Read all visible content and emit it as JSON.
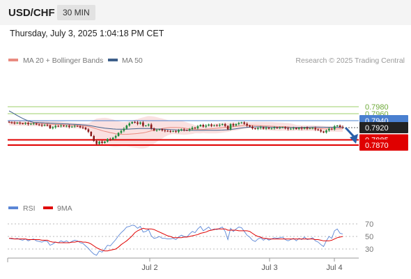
{
  "header": {
    "symbol": "USD/CHF",
    "timeframe": "30 MIN",
    "timestamp": "Thursday, July 3, 2025 1:04:18 PM CET"
  },
  "legend": {
    "ma20_label": "MA 20 + Bollinger Bands",
    "ma50_label": "MA 50",
    "credit": "Research © 2025 Trading Central",
    "rsi_label": "RSI",
    "ma9_label": "9MA"
  },
  "colors": {
    "up_candle": "#1e8a3c",
    "down_candle": "#8a1a1a",
    "ma20": "#e98b80",
    "band_fill": "#f9dcdc",
    "ma50": "#3e5f8a",
    "resistance": "#4a80d0",
    "target": "#e00000",
    "green_level": "#9ccf6a",
    "rsi": "#5b86d6",
    "rsi_ma": "#e00000",
    "forecast_arrow": "#2a5fa8",
    "current_price_bg": "#222222"
  },
  "chart_data": [
    {
      "type": "candlestick",
      "title": "USD/CHF 30 MIN",
      "y_tick_labels": [
        "0.7980",
        "0.7960",
        "0.7940",
        "0.7920",
        "0.7885",
        "0.7870"
      ],
      "ylim": [
        0.7865,
        0.799
      ],
      "x_tick_labels": [
        "Jul 2",
        "Jul 3",
        "Jul 4"
      ],
      "current_price": 0.792,
      "levels": [
        {
          "value": 0.798,
          "label": "0.7980",
          "kind": "green"
        },
        {
          "value": 0.796,
          "label": "0.7960",
          "kind": "green"
        },
        {
          "value": 0.794,
          "label": "0.7940",
          "kind": "resistance"
        },
        {
          "value": 0.7885,
          "label": "0.7885",
          "kind": "target"
        },
        {
          "value": 0.787,
          "label": "0.7870",
          "kind": "target"
        }
      ],
      "forecast": {
        "from": 0.792,
        "to": 0.787
      },
      "series": [
        {
          "name": "MA 20 + Bollinger Bands",
          "type": "line"
        },
        {
          "name": "MA 50",
          "type": "line"
        }
      ],
      "close": [
        0.7935,
        0.7934,
        0.7933,
        0.7934,
        0.7932,
        0.7931,
        0.7933,
        0.793,
        0.7931,
        0.7932,
        0.7929,
        0.7928,
        0.7926,
        0.7928,
        0.7927,
        0.7918,
        0.7921,
        0.7925,
        0.7924,
        0.7926,
        0.7924,
        0.7925,
        0.7922,
        0.7923,
        0.7925,
        0.7924,
        0.7921,
        0.792,
        0.7915,
        0.7908,
        0.7896,
        0.7882,
        0.7873,
        0.788,
        0.7876,
        0.788,
        0.7887,
        0.7886,
        0.7891,
        0.7896,
        0.7905,
        0.7911,
        0.7917,
        0.7926,
        0.7932,
        0.7936,
        0.7935,
        0.7931,
        0.7935,
        0.7925,
        0.7926,
        0.7929,
        0.7918,
        0.7912,
        0.7913,
        0.7915,
        0.7912,
        0.7911,
        0.791,
        0.7909,
        0.791,
        0.7908,
        0.7912,
        0.7915,
        0.7913,
        0.7912,
        0.7916,
        0.792,
        0.7918,
        0.7924,
        0.7928,
        0.7923,
        0.7926,
        0.7929,
        0.7925,
        0.7927,
        0.7926,
        0.7928,
        0.793,
        0.7925,
        0.7915,
        0.793,
        0.7926,
        0.793,
        0.7933,
        0.7935,
        0.7931,
        0.7926,
        0.7923,
        0.7918,
        0.7916,
        0.7919,
        0.7921,
        0.7917,
        0.792,
        0.7917,
        0.7918,
        0.792,
        0.7919,
        0.792,
        0.7921,
        0.7918,
        0.7916,
        0.7917,
        0.7919,
        0.7916,
        0.7919,
        0.7917,
        0.792,
        0.7917,
        0.7918,
        0.7919,
        0.7915,
        0.7913,
        0.7909,
        0.7906,
        0.7912,
        0.7917,
        0.7915,
        0.7924,
        0.7926,
        0.7922,
        0.7921
      ]
    },
    {
      "type": "line",
      "title": "RSI",
      "y_tick_labels": [
        "70",
        "50",
        "30"
      ],
      "ylim": [
        15,
        80
      ],
      "series": [
        {
          "name": "RSI",
          "values": [
            47,
            46,
            46,
            47,
            45,
            44,
            46,
            43,
            45,
            46,
            43,
            42,
            41,
            43,
            42,
            36,
            38,
            41,
            40,
            43,
            41,
            43,
            40,
            42,
            44,
            43,
            40,
            39,
            35,
            31,
            26,
            22,
            20,
            27,
            25,
            30,
            36,
            35,
            40,
            45,
            51,
            56,
            60,
            65,
            66,
            68,
            67,
            63,
            66,
            57,
            58,
            61,
            51,
            47,
            48,
            50,
            47,
            47,
            46,
            46,
            47,
            45,
            49,
            52,
            50,
            49,
            54,
            58,
            56,
            62,
            66,
            59,
            62,
            65,
            60,
            62,
            61,
            63,
            65,
            58,
            45,
            63,
            58,
            62,
            65,
            64,
            58,
            52,
            49,
            44,
            42,
            46,
            48,
            44,
            47,
            44,
            46,
            48,
            47,
            48,
            49,
            45,
            43,
            45,
            47,
            43,
            47,
            45,
            49,
            45,
            46,
            48,
            43,
            41,
            37,
            34,
            43,
            50,
            47,
            59,
            62,
            55,
            54
          ]
        },
        {
          "name": "9MA",
          "values": [
            47,
            47,
            46,
            46,
            46,
            46,
            46,
            45,
            45,
            45,
            45,
            45,
            44,
            44,
            44,
            42,
            41,
            41,
            40,
            40,
            40,
            40,
            40,
            41,
            41,
            42,
            42,
            41,
            41,
            40,
            38,
            35,
            32,
            30,
            28,
            27,
            27,
            28,
            29,
            30,
            33,
            37,
            40,
            43,
            47,
            51,
            56,
            59,
            61,
            63,
            62,
            62,
            62,
            61,
            59,
            57,
            55,
            53,
            51,
            50,
            48,
            48,
            48,
            48,
            49,
            49,
            50,
            51,
            52,
            53,
            55,
            56,
            57,
            59,
            60,
            61,
            62,
            62,
            62,
            62,
            60,
            60,
            60,
            60,
            59,
            59,
            59,
            59,
            58,
            55,
            52,
            50,
            49,
            47,
            47,
            46,
            46,
            46,
            46,
            46,
            46,
            46,
            46,
            46,
            46,
            46,
            46,
            46,
            46,
            46,
            46,
            46,
            45,
            45,
            44,
            43,
            43,
            43,
            44,
            46,
            48,
            49,
            50
          ]
        }
      ]
    }
  ]
}
